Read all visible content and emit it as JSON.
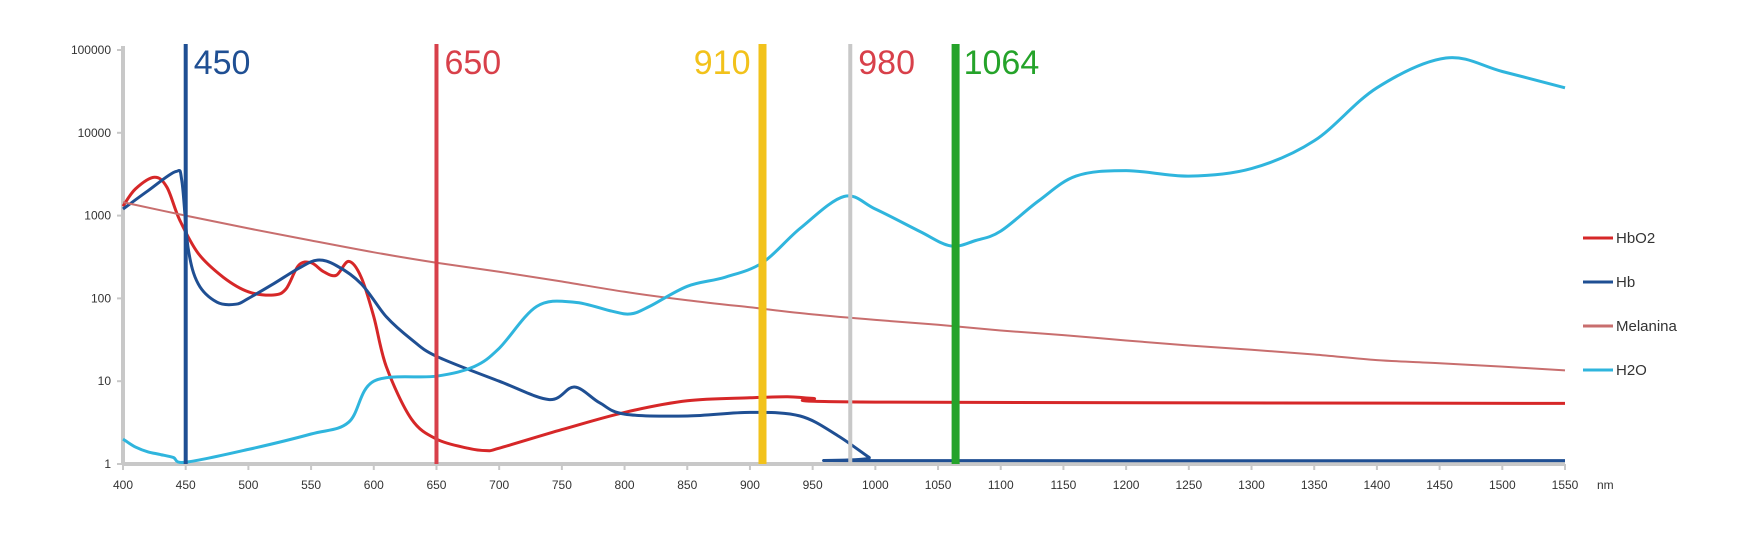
{
  "chart_data": {
    "type": "line",
    "title": "",
    "xlabel": "nm",
    "ylabel": "",
    "xlim": [
      400,
      1550
    ],
    "ylim": [
      1,
      100000
    ],
    "y_scale": "log",
    "x_ticks": [
      400,
      450,
      500,
      550,
      600,
      650,
      700,
      750,
      800,
      850,
      900,
      950,
      1000,
      1050,
      1100,
      1150,
      1200,
      1250,
      1300,
      1350,
      1400,
      1450,
      1500,
      1550
    ],
    "y_ticks": [
      1,
      10,
      100,
      1000,
      10000,
      100000
    ],
    "y_tick_labels": [
      "1",
      "10",
      "100",
      "1000",
      "10000",
      "100000"
    ],
    "grid": false,
    "legend_position": "right",
    "markers": [
      {
        "label": "450",
        "x": 450,
        "color": "#1f4f93"
      },
      {
        "label": "650",
        "x": 650,
        "color": "#d8404a"
      },
      {
        "label": "910",
        "x": 910,
        "color": "#f2c21b"
      },
      {
        "label": "980",
        "x": 980,
        "color": "#c8c8c8",
        "text_color": "#d8404a"
      },
      {
        "label": "1064",
        "x": 1064,
        "color": "#25a32a"
      }
    ],
    "series": [
      {
        "name": "HbO2",
        "color": "#d62728",
        "points": [
          [
            400,
            1300
          ],
          [
            410,
            2100
          ],
          [
            425,
            2900
          ],
          [
            435,
            2200
          ],
          [
            445,
            900
          ],
          [
            460,
            350
          ],
          [
            480,
            180
          ],
          [
            500,
            120
          ],
          [
            520,
            110
          ],
          [
            530,
            130
          ],
          [
            540,
            250
          ],
          [
            550,
            270
          ],
          [
            560,
            210
          ],
          [
            570,
            190
          ],
          [
            580,
            280
          ],
          [
            590,
            180
          ],
          [
            600,
            60
          ],
          [
            610,
            15
          ],
          [
            630,
            3.5
          ],
          [
            650,
            2
          ],
          [
            675,
            1.55
          ],
          [
            690,
            1.45
          ],
          [
            700,
            1.55
          ],
          [
            750,
            2.6
          ],
          [
            800,
            4.2
          ],
          [
            850,
            5.8
          ],
          [
            900,
            6.3
          ],
          [
            930,
            6.5
          ],
          [
            950,
            6.2
          ],
          [
            1000,
            5.6
          ],
          [
            1550,
            5.4
          ]
        ]
      },
      {
        "name": "Hb",
        "color": "#1f4f93",
        "points": [
          [
            400,
            1200
          ],
          [
            420,
            2000
          ],
          [
            442,
            3400
          ],
          [
            447,
            2600
          ],
          [
            452,
            400
          ],
          [
            460,
            150
          ],
          [
            475,
            90
          ],
          [
            490,
            85
          ],
          [
            500,
            100
          ],
          [
            520,
            150
          ],
          [
            540,
            230
          ],
          [
            555,
            290
          ],
          [
            570,
            250
          ],
          [
            590,
            150
          ],
          [
            610,
            60
          ],
          [
            630,
            32
          ],
          [
            650,
            20
          ],
          [
            700,
            10
          ],
          [
            740,
            6
          ],
          [
            760,
            8.5
          ],
          [
            780,
            5.5
          ],
          [
            800,
            4
          ],
          [
            850,
            3.8
          ],
          [
            900,
            4.2
          ],
          [
            940,
            3.8
          ],
          [
            970,
            2.2
          ],
          [
            995,
            1.2
          ],
          [
            1000,
            1.1
          ],
          [
            1550,
            1.1
          ]
        ]
      },
      {
        "name": "Melanina",
        "color": "#c86e6e",
        "points": [
          [
            400,
            1450
          ],
          [
            450,
            1000
          ],
          [
            500,
            700
          ],
          [
            550,
            500
          ],
          [
            600,
            360
          ],
          [
            650,
            270
          ],
          [
            700,
            210
          ],
          [
            750,
            160
          ],
          [
            800,
            120
          ],
          [
            850,
            95
          ],
          [
            900,
            78
          ],
          [
            950,
            64
          ],
          [
            1000,
            55
          ],
          [
            1050,
            48
          ],
          [
            1100,
            41
          ],
          [
            1150,
            36
          ],
          [
            1200,
            31
          ],
          [
            1250,
            27
          ],
          [
            1300,
            24
          ],
          [
            1350,
            21
          ],
          [
            1400,
            18
          ],
          [
            1450,
            16.5
          ],
          [
            1500,
            15
          ],
          [
            1550,
            13.5
          ]
        ]
      },
      {
        "name": "H2O",
        "color": "#2fb5dd",
        "points": [
          [
            400,
            2
          ],
          [
            410,
            1.6
          ],
          [
            420,
            1.4
          ],
          [
            430,
            1.3
          ],
          [
            440,
            1.2
          ],
          [
            450,
            1.05
          ],
          [
            500,
            1.5
          ],
          [
            550,
            2.3
          ],
          [
            580,
            3.2
          ],
          [
            600,
            10
          ],
          [
            650,
            11.5
          ],
          [
            680,
            15
          ],
          [
            700,
            25
          ],
          [
            730,
            80
          ],
          [
            760,
            90
          ],
          [
            790,
            70
          ],
          [
            805,
            65
          ],
          [
            820,
            80
          ],
          [
            850,
            140
          ],
          [
            880,
            180
          ],
          [
            910,
            270
          ],
          [
            940,
            700
          ],
          [
            975,
            1700
          ],
          [
            1000,
            1200
          ],
          [
            1035,
            650
          ],
          [
            1060,
            430
          ],
          [
            1080,
            500
          ],
          [
            1100,
            650
          ],
          [
            1130,
            1500
          ],
          [
            1160,
            3000
          ],
          [
            1200,
            3500
          ],
          [
            1250,
            3000
          ],
          [
            1300,
            3700
          ],
          [
            1350,
            8000
          ],
          [
            1400,
            35000
          ],
          [
            1455,
            80000
          ],
          [
            1500,
            55000
          ],
          [
            1550,
            35000
          ]
        ]
      }
    ]
  }
}
